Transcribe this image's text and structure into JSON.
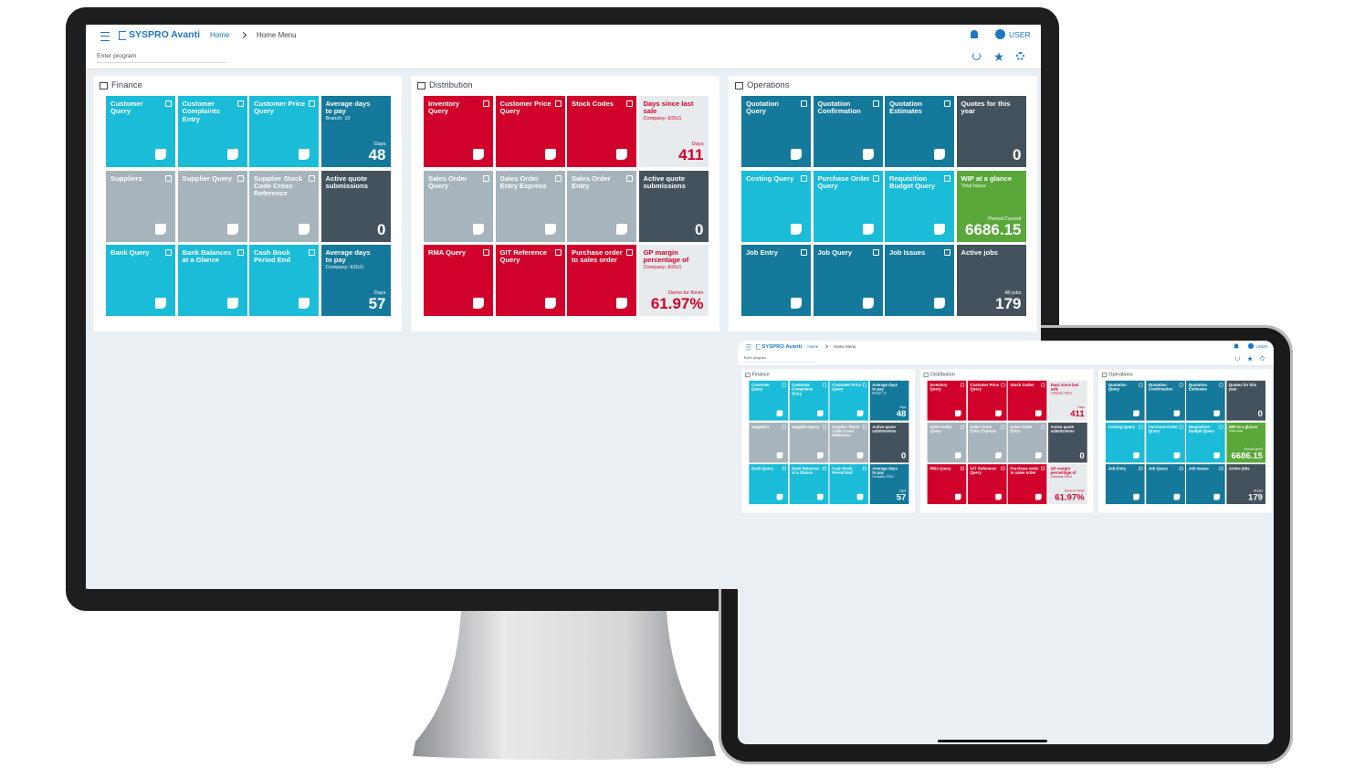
{
  "header": {
    "brand": "SYSPRO Avanti",
    "breadcrumb": [
      "Home",
      "Home Menu"
    ],
    "user": "USER",
    "search_placeholder": "Enter program"
  },
  "panels": [
    {
      "title": "Finance",
      "tiles": [
        {
          "label": "Customer Query",
          "color": "#1bbcd8"
        },
        {
          "label": "Customer Complaints Entry",
          "color": "#1bbcd8"
        },
        {
          "label": "Customer Price Query",
          "color": "#1bbcd8"
        },
        {
          "label": "Average days to pay",
          "color": "#14799a",
          "sub": "Branch: 10",
          "unit": "Days",
          "value": 48
        },
        {
          "label": "Suppliers",
          "color": "#a7b4bb"
        },
        {
          "label": "Supplier Query",
          "color": "#a7b4bb"
        },
        {
          "label": "Supplier Stock Code Cross Reference",
          "color": "#a7b4bb"
        },
        {
          "label": "Active quote submissions",
          "color": "#44525d",
          "value": 0
        },
        {
          "label": "Bank Query",
          "color": "#1bbcd8"
        },
        {
          "label": "Bank Balances at a Glance",
          "color": "#1bbcd8"
        },
        {
          "label": "Cash Book Period End",
          "color": "#1bbcd8"
        },
        {
          "label": "Average days to pay",
          "color": "#14799a",
          "sub": "Company: EDU1",
          "unit": "Days",
          "value": 57
        }
      ]
    },
    {
      "title": "Distribution",
      "tiles": [
        {
          "label": "Inventory Query",
          "color": "#d0022b"
        },
        {
          "label": "Customer Price Query",
          "color": "#d0022b"
        },
        {
          "label": "Stock Codes",
          "color": "#d0022b"
        },
        {
          "label": "Days since last sale",
          "color": "#e7ebed",
          "text_color": "#d0022b",
          "sub": "Company: EDU1",
          "unit": "Days",
          "value": 411
        },
        {
          "label": "Sales Order Query",
          "color": "#a7b4bb"
        },
        {
          "label": "Sales Order Entry Express",
          "color": "#a7b4bb"
        },
        {
          "label": "Sales Order Entry",
          "color": "#a7b4bb"
        },
        {
          "label": "Active quote submissions",
          "color": "#44525d",
          "value": 0
        },
        {
          "label": "RMA Query",
          "color": "#d0022b"
        },
        {
          "label": "GIT Reference Query",
          "color": "#d0022b"
        },
        {
          "label": "Purchase order to sales order",
          "color": "#d0022b"
        },
        {
          "label": "GP margin percentage of",
          "color": "#e7ebed",
          "text_color": "#d0022b",
          "sub": "Company: EDU1",
          "unit": "Demo for Kevin",
          "value": "61.97%"
        }
      ]
    },
    {
      "title": "Operations",
      "tiles": [
        {
          "label": "Quotation Query",
          "color": "#14799a"
        },
        {
          "label": "Quotation Confirmation",
          "color": "#14799a"
        },
        {
          "label": "Quotation Estimates",
          "color": "#14799a"
        },
        {
          "label": "Quotes for this year",
          "color": "#44525d",
          "value": 0
        },
        {
          "label": "Costing Query",
          "color": "#1bbcd8"
        },
        {
          "label": "Purchase Order Query",
          "color": "#1bbcd8"
        },
        {
          "label": "Requisition Budget Query",
          "color": "#1bbcd8"
        },
        {
          "label": "WIP at a glance",
          "color": "#5aa83a",
          "sub": "Total hours",
          "unit": "Period:Current",
          "value": 6686.15
        },
        {
          "label": "Job Entry",
          "color": "#14799a"
        },
        {
          "label": "Job Query",
          "color": "#14799a"
        },
        {
          "label": "Job Issues",
          "color": "#14799a"
        },
        {
          "label": "Active jobs",
          "color": "#44525d",
          "unit": "All jobs",
          "value": 179
        }
      ]
    }
  ]
}
